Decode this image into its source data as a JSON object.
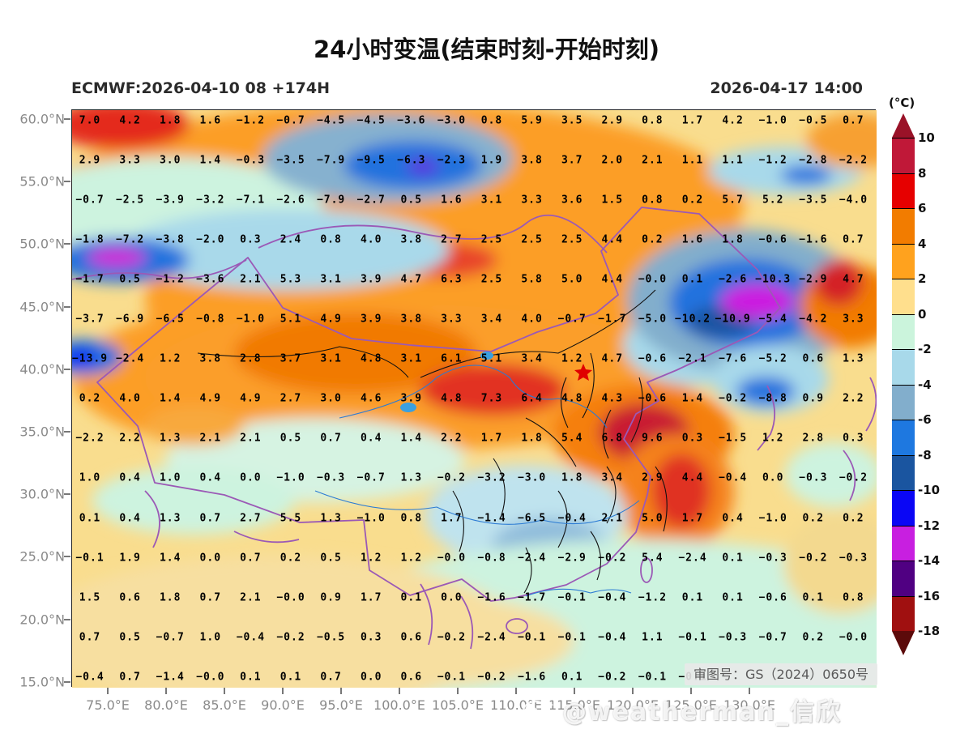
{
  "header": {
    "title": "24小时变温(结束时刻-开始时刻)",
    "model_run": "ECMWF:2026-04-10 08 +174H",
    "valid_time": "2026-04-17 14:00"
  },
  "colorbar": {
    "unit_label": "(°C)",
    "tick_labels": [
      "10",
      "8",
      "6",
      "4",
      "2",
      "0",
      "-2",
      "-4",
      "-6",
      "-8",
      "-10",
      "-12",
      "-14",
      "-16",
      "-18"
    ],
    "segment_colors": [
      "#C01838",
      "#E60000",
      "#F27C00",
      "#FFA21E",
      "#FFDF8D",
      "#CBF4DC",
      "#A8D9EA",
      "#82AECC",
      "#1E78E0",
      "#1A55A0",
      "#0A06F5",
      "#C81FE0",
      "#500082",
      "#A01010"
    ],
    "arrow_top_color": "#9A1228",
    "arrow_bottom_color": "#5C0A0A"
  },
  "axes": {
    "lat_ticks": [
      "60.0°N",
      "55.0°N",
      "50.0°N",
      "45.0°N",
      "40.0°N",
      "35.0°N",
      "30.0°N",
      "25.0°N",
      "20.0°N",
      "15.0°N"
    ],
    "lon_ticks": [
      "75.0°E",
      "80.0°E",
      "85.0°E",
      "90.0°E",
      "95.0°E",
      "100.0°E",
      "105.0°E",
      "110.0°E",
      "115.0°E",
      "120.0°E",
      "125.0°E",
      "130.0°E"
    ]
  },
  "chart_data": {
    "type": "heatmap",
    "title": "24小时变温(结束时刻-开始时刻)",
    "xlabel": "longitude",
    "ylabel": "latitude",
    "unit": "°C",
    "lat_range": [
      15,
      60
    ],
    "lon_range": [
      75,
      140
    ],
    "levels": [
      10,
      8,
      6,
      4,
      2,
      0,
      -2,
      -4,
      -6,
      -8,
      -10,
      -12,
      -14,
      -16,
      -18
    ],
    "grid_values": [
      [
        "7.0",
        "4.2",
        "1.8",
        "1.6",
        "-1.2",
        "-0.7",
        "-4.5",
        "-4.5",
        "-3.6",
        "-3.0",
        "0.8",
        "5.9",
        "3.5",
        "2.9",
        "0.8",
        "1.7",
        "4.2",
        "-1.0",
        "-0.5",
        "0.7"
      ],
      [
        "2.9",
        "3.3",
        "3.0",
        "1.4",
        "-0.3",
        "-3.5",
        "-7.9",
        "-9.5",
        "-6.3",
        "-2.3",
        "1.9",
        "3.8",
        "3.7",
        "2.0",
        "2.1",
        "1.1",
        "1.1",
        "-1.2",
        "-2.8",
        "-2.2"
      ],
      [
        "-0.7",
        "-2.5",
        "-3.9",
        "-3.2",
        "-7.1",
        "-2.6",
        "-7.9",
        "-2.7",
        "0.5",
        "1.6",
        "3.1",
        "3.3",
        "3.6",
        "1.5",
        "0.8",
        "0.2",
        "5.7",
        "5.2",
        "-3.5",
        "-4.0"
      ],
      [
        "-1.8",
        "-7.2",
        "-3.8",
        "-2.0",
        "0.3",
        "2.4",
        "0.8",
        "4.0",
        "3.8",
        "2.7",
        "2.5",
        "2.5",
        "2.5",
        "4.4",
        "0.2",
        "1.6",
        "1.8",
        "-0.6",
        "-1.6",
        "0.7"
      ],
      [
        "-1.7",
        "0.5",
        "-1.2",
        "-3.6",
        "2.1",
        "5.3",
        "3.1",
        "3.9",
        "4.7",
        "6.3",
        "2.5",
        "5.8",
        "5.0",
        "4.4",
        "-0.0",
        "0.1",
        "-2.6",
        "-10.3",
        "-2.9",
        "4.7"
      ],
      [
        "-3.7",
        "-6.9",
        "-6.5",
        "-0.8",
        "-1.0",
        "5.1",
        "4.9",
        "3.9",
        "3.8",
        "3.3",
        "3.4",
        "4.0",
        "-0.7",
        "-1.7",
        "-5.0",
        "-10.2",
        "-10.9",
        "-5.4",
        "-4.2",
        "3.3"
      ],
      [
        "-13.9",
        "-2.4",
        "1.2",
        "3.8",
        "2.8",
        "3.7",
        "3.1",
        "4.8",
        "3.1",
        "6.1",
        "5.1",
        "3.4",
        "1.2",
        "4.7",
        "-0.6",
        "-2.1",
        "-7.6",
        "-5.2",
        "0.6",
        "1.3"
      ],
      [
        "0.2",
        "4.0",
        "1.4",
        "4.9",
        "4.9",
        "2.7",
        "3.0",
        "4.6",
        "3.9",
        "4.8",
        "7.3",
        "6.4",
        "4.8",
        "4.3",
        "-0.6",
        "1.4",
        "-0.2",
        "-8.8",
        "0.9",
        "2.2"
      ],
      [
        "-2.2",
        "2.2",
        "1.3",
        "2.1",
        "2.1",
        "0.5",
        "0.7",
        "0.4",
        "1.4",
        "2.2",
        "1.7",
        "1.8",
        "5.4",
        "6.8",
        "9.6",
        "0.3",
        "-1.5",
        "1.2",
        "2.8",
        "0.3"
      ],
      [
        "1.0",
        "0.4",
        "1.0",
        "0.4",
        "0.0",
        "-1.0",
        "-0.3",
        "-0.7",
        "1.3",
        "-0.2",
        "-3.2",
        "-3.0",
        "1.8",
        "3.4",
        "2.9",
        "4.4",
        "-0.4",
        "0.0",
        "-0.3",
        "-0.2"
      ],
      [
        "0.1",
        "0.4",
        "1.3",
        "0.7",
        "2.7",
        "5.5",
        "1.3",
        "-1.0",
        "0.8",
        "1.7",
        "-1.4",
        "-6.5",
        "-0.4",
        "2.1",
        "5.0",
        "1.7",
        "0.4",
        "-1.0",
        "0.2",
        "0.2"
      ],
      [
        "-0.1",
        "1.9",
        "1.4",
        "0.0",
        "0.7",
        "0.2",
        "0.5",
        "1.2",
        "1.2",
        "-0.0",
        "-0.8",
        "-2.4",
        "-2.9",
        "-0.2",
        "5.4",
        "-2.4",
        "0.1",
        "-0.3",
        "-0.2",
        "-0.3"
      ],
      [
        "1.5",
        "0.6",
        "1.8",
        "0.7",
        "2.1",
        "-0.0",
        "0.9",
        "1.7",
        "0.1",
        "0.0",
        "-1.6",
        "-1.7",
        "-0.1",
        "-0.4",
        "-1.2",
        "0.1",
        "0.1",
        "-0.6",
        "0.1",
        "0.8"
      ],
      [
        "0.7",
        "0.5",
        "-0.7",
        "1.0",
        "-0.4",
        "-0.2",
        "-0.5",
        "0.3",
        "0.6",
        "-0.2",
        "-2.4",
        "-0.1",
        "-0.1",
        "-0.4",
        "1.1",
        "-0.1",
        "-0.3",
        "-0.7",
        "0.2",
        "-0.0"
      ],
      [
        "-0.4",
        "0.7",
        "-1.4",
        "-0.0",
        "0.1",
        "0.1",
        "0.7",
        "0.0",
        "0.6",
        "-0.1",
        "-0.2",
        "-1.6",
        "0.1",
        "-0.2",
        "-0.1",
        "-0.1",
        "",
        "",
        "",
        ""
      ]
    ]
  },
  "overlays": {
    "license_badge": "审图号：GS（2024）0650号",
    "watermark": "@weatherman_信欣"
  }
}
